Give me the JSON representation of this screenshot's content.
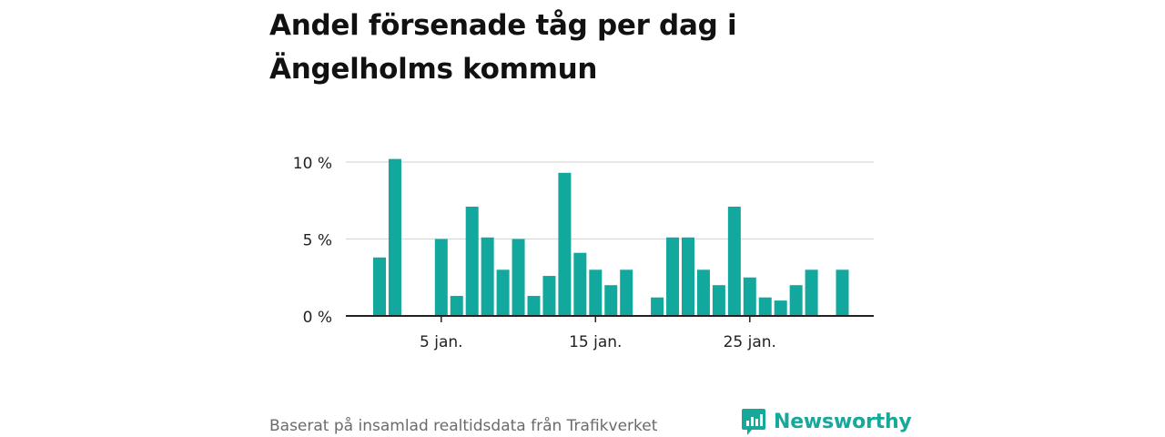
{
  "title": "Andel försenade tåg per dag i Ängelholms kommun",
  "footer": {
    "source": "Baserat på insamlad realtidsdata från Trafikverket",
    "brand": "Newsworthy"
  },
  "colors": {
    "bar": "#13a89e",
    "grid": "#d9d9d9",
    "axis": "#222222",
    "brand": "#16a89b"
  },
  "icons": {
    "brand_logo": "newsworthy-logo-icon"
  },
  "chart_data": {
    "type": "bar",
    "x": [
      1,
      2,
      3,
      4,
      5,
      6,
      7,
      8,
      9,
      10,
      11,
      12,
      13,
      14,
      15,
      16,
      17,
      18,
      19,
      20,
      21,
      22,
      23,
      24,
      25,
      26,
      27,
      28,
      29,
      30,
      31
    ],
    "values": [
      3.8,
      10.2,
      null,
      null,
      5.0,
      1.3,
      7.1,
      5.1,
      3.0,
      5.0,
      1.3,
      2.6,
      9.3,
      4.1,
      3.0,
      2.0,
      3.0,
      null,
      1.2,
      5.1,
      5.1,
      3.0,
      2.0,
      7.1,
      2.5,
      1.2,
      1.0,
      2.0,
      3.0,
      null,
      3.0
    ],
    "ylim": [
      0,
      10.5
    ],
    "yticks": [
      0,
      5,
      10
    ],
    "ytick_labels": [
      "0 %",
      "5 %",
      "10 %"
    ],
    "xticks": [
      5,
      15,
      25
    ],
    "xtick_labels": [
      "5 jan.",
      "15 jan.",
      "25 jan."
    ],
    "grid": true,
    "xlabel": "",
    "ylabel": ""
  }
}
